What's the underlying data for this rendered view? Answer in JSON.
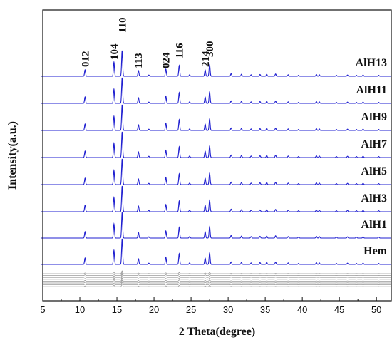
{
  "chart_data": {
    "type": "line",
    "xlabel": "2 Theta(degree)",
    "ylabel": "Intensity(a.u.)",
    "xlim": [
      5,
      52
    ],
    "x_ticks": [
      5,
      10,
      15,
      20,
      25,
      30,
      35,
      40,
      45,
      50
    ],
    "grid": false,
    "series_color": "#1f1fd0",
    "reference_color": "#9a9a9a",
    "series": [
      {
        "name": "AlH13"
      },
      {
        "name": "AlH11"
      },
      {
        "name": "AlH9"
      },
      {
        "name": "AlH7"
      },
      {
        "name": "AlH5"
      },
      {
        "name": "AlH3"
      },
      {
        "name": "AlH1"
      },
      {
        "name": "Hem"
      }
    ],
    "peaks": [
      {
        "x": 10.7,
        "h": 0.25
      },
      {
        "x": 14.6,
        "h": 0.55
      },
      {
        "x": 15.7,
        "h": 1.0
      },
      {
        "x": 17.9,
        "h": 0.22
      },
      {
        "x": 19.3,
        "h": 0.05
      },
      {
        "x": 21.6,
        "h": 0.28
      },
      {
        "x": 23.4,
        "h": 0.42
      },
      {
        "x": 24.8,
        "h": 0.06
      },
      {
        "x": 26.9,
        "h": 0.25
      },
      {
        "x": 27.5,
        "h": 0.45
      },
      {
        "x": 30.4,
        "h": 0.1
      },
      {
        "x": 31.8,
        "h": 0.08
      },
      {
        "x": 33.1,
        "h": 0.06
      },
      {
        "x": 34.3,
        "h": 0.07
      },
      {
        "x": 35.2,
        "h": 0.08
      },
      {
        "x": 36.4,
        "h": 0.09
      },
      {
        "x": 38.1,
        "h": 0.06
      },
      {
        "x": 39.5,
        "h": 0.04
      },
      {
        "x": 41.9,
        "h": 0.07
      },
      {
        "x": 42.3,
        "h": 0.06
      },
      {
        "x": 44.6,
        "h": 0.04
      },
      {
        "x": 46.1,
        "h": 0.05
      },
      {
        "x": 47.3,
        "h": 0.04
      },
      {
        "x": 48.2,
        "h": 0.05
      },
      {
        "x": 50.3,
        "h": 0.04
      }
    ],
    "annotations": [
      {
        "text": "012",
        "x": 10.7
      },
      {
        "text": "104",
        "x": 14.6
      },
      {
        "text": "110",
        "x": 15.7
      },
      {
        "text": "113",
        "x": 17.9
      },
      {
        "text": "024",
        "x": 21.6
      },
      {
        "text": "116",
        "x": 23.4
      },
      {
        "text": "214",
        "x": 26.9
      },
      {
        "text": "300",
        "x": 27.5
      }
    ]
  }
}
